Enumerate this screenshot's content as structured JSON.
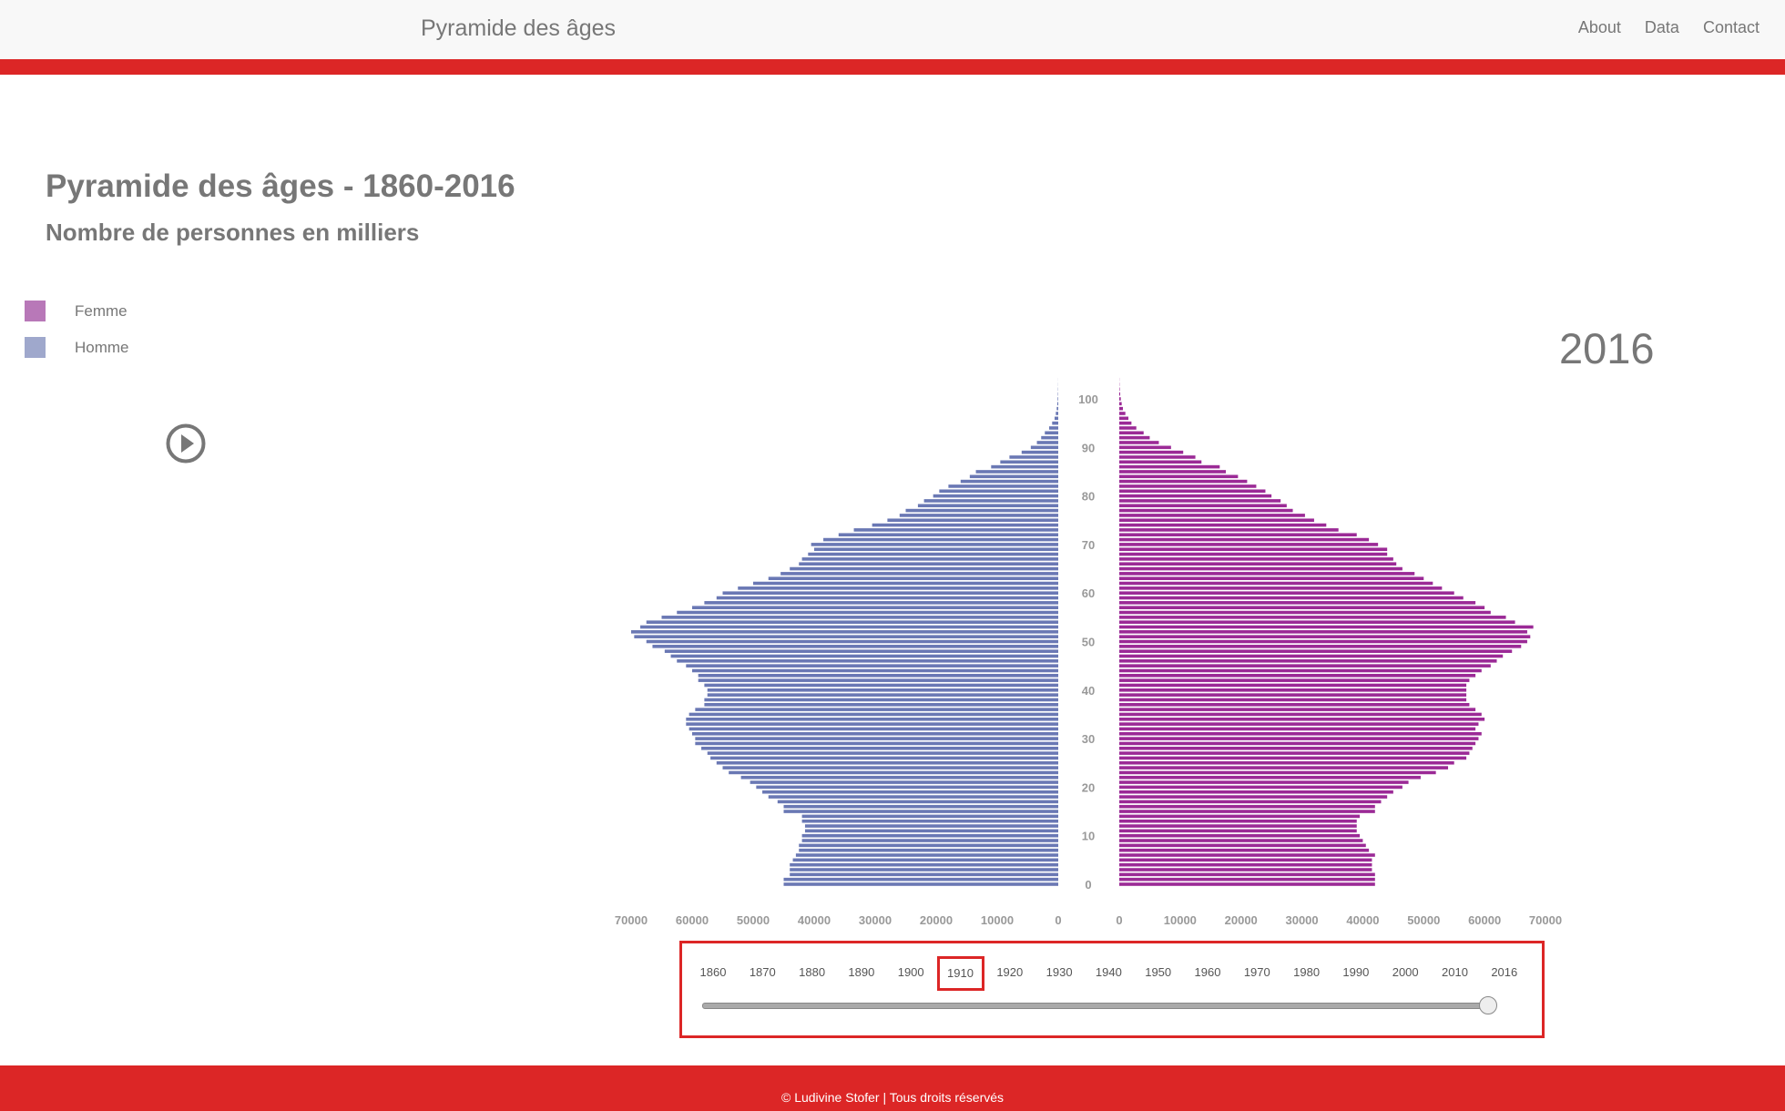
{
  "nav": {
    "brand": "Pyramide des âges",
    "links": [
      "About",
      "Data",
      "Contact"
    ]
  },
  "title": "Pyramide des âges - 1860-2016",
  "subtitle": "Nombre de personnes en milliers",
  "legend": [
    {
      "label": "Femme",
      "color": "#b878b8"
    },
    {
      "label": "Homme",
      "color": "#9fa8cc"
    }
  ],
  "play_icon": "play-circle-icon",
  "current_year": "2016",
  "timeline": {
    "years": [
      "1860",
      "1870",
      "1880",
      "1890",
      "1900",
      "1910",
      "1920",
      "1930",
      "1940",
      "1950",
      "1960",
      "1970",
      "1980",
      "1990",
      "2000",
      "2010",
      "2016"
    ],
    "selected": "1910",
    "slider_value": "2016"
  },
  "footer": "© Ludivine Stofer | Tous droits réservés",
  "chart_data": {
    "type": "bar",
    "orientation": "horizontal-pyramid",
    "year": "2016",
    "age_ticks": [
      "0",
      "10",
      "20",
      "30",
      "40",
      "50",
      "60",
      "70",
      "80",
      "90",
      "100"
    ],
    "x_ticks": [
      "70000",
      "60000",
      "50000",
      "40000",
      "30000",
      "20000",
      "10000",
      "0",
      "0",
      "10000",
      "20000",
      "30000",
      "40000",
      "50000",
      "60000",
      "70000"
    ],
    "xlim": [
      0,
      70000
    ],
    "colors": {
      "Homme": "#6a78b4",
      "Femme": "#9b2a96"
    },
    "ages": [
      0,
      1,
      2,
      3,
      4,
      5,
      6,
      7,
      8,
      9,
      10,
      11,
      12,
      13,
      14,
      15,
      16,
      17,
      18,
      19,
      20,
      21,
      22,
      23,
      24,
      25,
      26,
      27,
      28,
      29,
      30,
      31,
      32,
      33,
      34,
      35,
      36,
      37,
      38,
      39,
      40,
      41,
      42,
      43,
      44,
      45,
      46,
      47,
      48,
      49,
      50,
      51,
      52,
      53,
      54,
      55,
      56,
      57,
      58,
      59,
      60,
      61,
      62,
      63,
      64,
      65,
      66,
      67,
      68,
      69,
      70,
      71,
      72,
      73,
      74,
      75,
      76,
      77,
      78,
      79,
      80,
      81,
      82,
      83,
      84,
      85,
      86,
      87,
      88,
      89,
      90,
      91,
      92,
      93,
      94,
      95,
      96,
      97,
      98,
      99,
      100,
      101,
      102,
      103,
      104
    ],
    "series": [
      {
        "name": "Homme",
        "values": [
          45000,
          45000,
          44000,
          44000,
          44000,
          43500,
          43000,
          42500,
          42500,
          42000,
          42000,
          41500,
          41500,
          42000,
          42000,
          45000,
          45000,
          46000,
          47500,
          48500,
          49500,
          50500,
          52000,
          54000,
          55000,
          56000,
          57000,
          57500,
          58500,
          59500,
          59500,
          60000,
          60500,
          61000,
          61000,
          60500,
          59500,
          58000,
          58000,
          57500,
          57500,
          58000,
          59000,
          59000,
          60000,
          61000,
          62500,
          63500,
          64500,
          66500,
          67500,
          69500,
          70000,
          68500,
          67500,
          65000,
          62500,
          60000,
          58000,
          56000,
          55000,
          52500,
          50000,
          47500,
          45500,
          44000,
          42500,
          42000,
          41000,
          40000,
          40500,
          38500,
          36000,
          33500,
          30500,
          28000,
          26000,
          25000,
          23000,
          22000,
          20500,
          19500,
          18000,
          16000,
          14500,
          13500,
          11000,
          9500,
          8000,
          6000,
          4500,
          3500,
          2800,
          2200,
          1500,
          1000,
          600,
          400,
          250,
          150,
          100,
          60,
          40,
          20,
          10
        ]
      },
      {
        "name": "Femme",
        "values": [
          42000,
          42000,
          42000,
          41500,
          41500,
          41500,
          42000,
          41000,
          40500,
          40000,
          39500,
          39000,
          39000,
          39000,
          39500,
          42000,
          42000,
          43000,
          44000,
          45000,
          46500,
          47500,
          49500,
          52000,
          54000,
          55000,
          57000,
          57500,
          58000,
          58500,
          59000,
          59500,
          58500,
          59000,
          60000,
          59500,
          58500,
          57500,
          57000,
          57000,
          57000,
          57000,
          57500,
          58500,
          59500,
          61000,
          62000,
          63000,
          64500,
          66000,
          67000,
          67500,
          67000,
          68000,
          65000,
          63500,
          61000,
          60000,
          58500,
          56500,
          55000,
          53000,
          51500,
          50000,
          48500,
          46500,
          45500,
          45000,
          44000,
          44000,
          42500,
          41000,
          39000,
          36000,
          34000,
          32000,
          30500,
          28500,
          27500,
          26500,
          25000,
          24000,
          22500,
          21000,
          19500,
          17500,
          16500,
          13500,
          12500,
          10500,
          8500,
          6500,
          5000,
          4000,
          2800,
          2000,
          1500,
          1000,
          600,
          400,
          250,
          150,
          80,
          40,
          20
        ]
      }
    ]
  }
}
